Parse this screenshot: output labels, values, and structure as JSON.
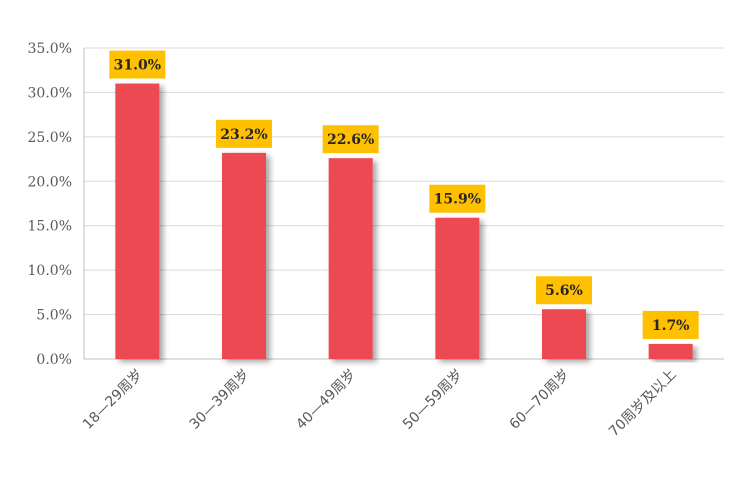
{
  "chart_data": {
    "type": "bar",
    "categories": [
      "18—29周岁",
      "30—39周岁",
      "40—49周岁",
      "50—59周岁",
      "60—70周岁",
      "70周岁及以上"
    ],
    "values": [
      31.0,
      23.2,
      22.6,
      15.9,
      5.6,
      1.7
    ],
    "data_labels": [
      "31.0%",
      "23.2%",
      "22.6%",
      "15.9%",
      "5.6%",
      "1.7%"
    ],
    "y_ticks": [
      "0.0%",
      "5.0%",
      "10.0%",
      "15.0%",
      "20.0%",
      "25.0%",
      "30.0%",
      "35.0%"
    ],
    "title": "",
    "xlabel": "",
    "ylabel": "",
    "ylim": [
      0,
      35
    ],
    "grid": "horizontal",
    "legend": "none",
    "colors": {
      "bar": "#ED4A53",
      "label_bg": "#FFC000",
      "grid": "#D9D9D9",
      "axis": "#BFBFBF"
    }
  }
}
